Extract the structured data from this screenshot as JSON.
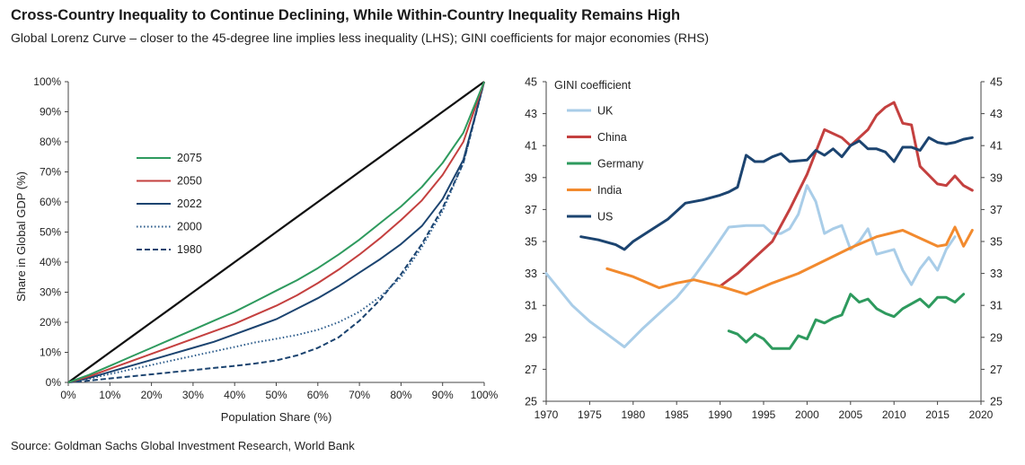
{
  "title": "Cross-Country Inequality to Continue Declining, While Within-Country Inequality Remains High",
  "subtitle": "Global Lorenz Curve – closer to the 45-degree line implies less inequality (LHS); GINI coefficients for major economies (RHS)",
  "source": "Source: Goldman Sachs Global Investment Research, World Bank",
  "chart_data": [
    {
      "type": "line",
      "xlabel": "Population Share (%)",
      "ylabel": "Share in Global GDP (%)",
      "xlim": [
        0,
        100
      ],
      "ylim": [
        0,
        100
      ],
      "xticks": [
        "0%",
        "10%",
        "20%",
        "30%",
        "40%",
        "50%",
        "60%",
        "70%",
        "80%",
        "90%",
        "100%"
      ],
      "yticks": [
        "0%",
        "10%",
        "20%",
        "30%",
        "40%",
        "50%",
        "60%",
        "70%",
        "80%",
        "90%",
        "100%"
      ],
      "grid": false,
      "legend_position": "left",
      "x": [
        0,
        5,
        10,
        15,
        20,
        25,
        30,
        35,
        40,
        45,
        50,
        55,
        60,
        65,
        70,
        75,
        80,
        85,
        90,
        95,
        100
      ],
      "series": [
        {
          "name": "2075",
          "color": "#2e9a5e",
          "style": "solid",
          "values": [
            0,
            2.5,
            5.5,
            8.5,
            11.5,
            14.5,
            17.5,
            20.5,
            23.5,
            27,
            30.5,
            34,
            38,
            42.5,
            47.5,
            53,
            58.5,
            65,
            73,
            83,
            100
          ]
        },
        {
          "name": "2050",
          "color": "#c4403f",
          "style": "solid",
          "values": [
            0,
            2,
            4.5,
            7,
            9.5,
            12,
            14.5,
            17,
            19.5,
            22.5,
            25.5,
            29,
            33,
            37.5,
            42.5,
            48,
            54,
            60.5,
            69,
            80,
            100
          ]
        },
        {
          "name": "2022",
          "color": "#1c4470",
          "style": "solid",
          "values": [
            0,
            1.5,
            3.5,
            5.5,
            7.5,
            9.5,
            11.5,
            13.5,
            16,
            18.5,
            21,
            24.5,
            28,
            32,
            36.5,
            41,
            46,
            52,
            61,
            74,
            100
          ]
        },
        {
          "name": "2000",
          "color": "#2a5a8a",
          "style": "dotted",
          "values": [
            0,
            1.2,
            2.8,
            4.3,
            5.8,
            7.3,
            8.8,
            10.3,
            11.8,
            13.3,
            14.5,
            15.8,
            17.5,
            20,
            23.5,
            28.5,
            35,
            45,
            57,
            73,
            100
          ]
        },
        {
          "name": "1980",
          "color": "#1c4470",
          "style": "dashed",
          "values": [
            0,
            0.6,
            1.3,
            2,
            2.7,
            3.4,
            4.1,
            4.8,
            5.5,
            6.3,
            7.3,
            9,
            11.5,
            15,
            20.5,
            27.5,
            36,
            46,
            58,
            73,
            100
          ]
        },
        {
          "name": "",
          "color": "#111111",
          "style": "solid",
          "values": [
            0,
            5,
            10,
            15,
            20,
            25,
            30,
            35,
            40,
            45,
            50,
            55,
            60,
            65,
            70,
            75,
            80,
            85,
            90,
            95,
            100
          ]
        }
      ]
    },
    {
      "type": "line",
      "title": "GINI coefficient",
      "xlabel": "",
      "ylabel": "",
      "xlim": [
        1970,
        2020
      ],
      "ylim": [
        25,
        45
      ],
      "xticks": [
        "1970",
        "1975",
        "1980",
        "1985",
        "1990",
        "1995",
        "2000",
        "2005",
        "2010",
        "2015",
        "2020"
      ],
      "yticks": [
        "25",
        "27",
        "29",
        "31",
        "33",
        "35",
        "37",
        "39",
        "41",
        "43",
        "45"
      ],
      "secondary_y_axis": true,
      "grid": false,
      "legend_position": "top-left",
      "series": [
        {
          "name": "UK",
          "color": "#a9cde8",
          "points": [
            [
              1970,
              33
            ],
            [
              1973,
              31
            ],
            [
              1975,
              30
            ],
            [
              1977,
              29.2
            ],
            [
              1979,
              28.4
            ],
            [
              1981,
              29.5
            ],
            [
              1983,
              30.5
            ],
            [
              1985,
              31.5
            ],
            [
              1987,
              32.8
            ],
            [
              1989,
              34.3
            ],
            [
              1991,
              35.9
            ],
            [
              1993,
              36
            ],
            [
              1995,
              36
            ],
            [
              1996,
              35.5
            ],
            [
              1997,
              35.5
            ],
            [
              1998,
              35.8
            ],
            [
              1999,
              36.7
            ],
            [
              2000,
              38.5
            ],
            [
              2001,
              37.5
            ],
            [
              2002,
              35.5
            ],
            [
              2003,
              35.8
            ],
            [
              2004,
              36
            ],
            [
              2005,
              34.5
            ],
            [
              2006,
              35
            ],
            [
              2007,
              35.8
            ],
            [
              2008,
              34.2
            ],
            [
              2010,
              34.5
            ],
            [
              2011,
              33.2
            ],
            [
              2012,
              32.3
            ],
            [
              2013,
              33.3
            ],
            [
              2014,
              34
            ],
            [
              2015,
              33.2
            ],
            [
              2016,
              34.5
            ],
            [
              2017,
              35.3
            ]
          ]
        },
        {
          "name": "China",
          "color": "#c4403f",
          "points": [
            [
              1990,
              32.2
            ],
            [
              1992,
              33
            ],
            [
              1994,
              34
            ],
            [
              1996,
              35
            ],
            [
              1998,
              37
            ],
            [
              2000,
              39.2
            ],
            [
              2002,
              42
            ],
            [
              2004,
              41.5
            ],
            [
              2005,
              41
            ],
            [
              2007,
              42
            ],
            [
              2008,
              42.9
            ],
            [
              2009,
              43.4
            ],
            [
              2010,
              43.7
            ],
            [
              2011,
              42.4
            ],
            [
              2012,
              42.3
            ],
            [
              2013,
              39.7
            ],
            [
              2015,
              38.6
            ],
            [
              2016,
              38.5
            ],
            [
              2017,
              39.1
            ],
            [
              2018,
              38.5
            ],
            [
              2019,
              38.2
            ]
          ]
        },
        {
          "name": "Germany",
          "color": "#2e9a5e",
          "points": [
            [
              1991,
              29.4
            ],
            [
              1992,
              29.2
            ],
            [
              1993,
              28.7
            ],
            [
              1994,
              29.2
            ],
            [
              1995,
              28.9
            ],
            [
              1996,
              28.3
            ],
            [
              1997,
              28.3
            ],
            [
              1998,
              28.3
            ],
            [
              1999,
              29.1
            ],
            [
              2000,
              28.9
            ],
            [
              2001,
              30.1
            ],
            [
              2002,
              29.9
            ],
            [
              2003,
              30.2
            ],
            [
              2004,
              30.4
            ],
            [
              2005,
              31.7
            ],
            [
              2006,
              31.2
            ],
            [
              2007,
              31.4
            ],
            [
              2008,
              30.8
            ],
            [
              2009,
              30.5
            ],
            [
              2010,
              30.3
            ],
            [
              2011,
              30.8
            ],
            [
              2012,
              31.1
            ],
            [
              2013,
              31.4
            ],
            [
              2014,
              30.9
            ],
            [
              2015,
              31.5
            ],
            [
              2016,
              31.5
            ],
            [
              2017,
              31.2
            ],
            [
              2018,
              31.7
            ]
          ]
        },
        {
          "name": "India",
          "color": "#f28a2e",
          "points": [
            [
              1977,
              33.3
            ],
            [
              1980,
              32.8
            ],
            [
              1983,
              32.1
            ],
            [
              1985,
              32.4
            ],
            [
              1987,
              32.6
            ],
            [
              1990,
              32.2
            ],
            [
              1993,
              31.7
            ],
            [
              1996,
              32.4
            ],
            [
              1999,
              33
            ],
            [
              2002,
              33.8
            ],
            [
              2005,
              34.6
            ],
            [
              2008,
              35.3
            ],
            [
              2011,
              35.7
            ],
            [
              2013,
              35.2
            ],
            [
              2015,
              34.7
            ],
            [
              2016,
              34.8
            ],
            [
              2017,
              35.9
            ],
            [
              2018,
              34.7
            ],
            [
              2019,
              35.7
            ]
          ]
        },
        {
          "name": "US",
          "color": "#1c4470",
          "points": [
            [
              1974,
              35.3
            ],
            [
              1976,
              35.1
            ],
            [
              1978,
              34.8
            ],
            [
              1979,
              34.5
            ],
            [
              1980,
              35
            ],
            [
              1982,
              35.7
            ],
            [
              1984,
              36.4
            ],
            [
              1986,
              37.4
            ],
            [
              1988,
              37.6
            ],
            [
              1990,
              37.9
            ],
            [
              1991,
              38.1
            ],
            [
              1992,
              38.4
            ],
            [
              1993,
              40.4
            ],
            [
              1994,
              40
            ],
            [
              1995,
              40
            ],
            [
              1996,
              40.3
            ],
            [
              1997,
              40.5
            ],
            [
              1998,
              40
            ],
            [
              2000,
              40.1
            ],
            [
              2001,
              40.7
            ],
            [
              2002,
              40.4
            ],
            [
              2003,
              40.8
            ],
            [
              2004,
              40.3
            ],
            [
              2005,
              41
            ],
            [
              2006,
              41.3
            ],
            [
              2007,
              40.8
            ],
            [
              2008,
              40.8
            ],
            [
              2009,
              40.6
            ],
            [
              2010,
              40
            ],
            [
              2011,
              40.9
            ],
            [
              2012,
              40.9
            ],
            [
              2013,
              40.7
            ],
            [
              2014,
              41.5
            ],
            [
              2015,
              41.2
            ],
            [
              2016,
              41.1
            ],
            [
              2017,
              41.2
            ],
            [
              2018,
              41.4
            ],
            [
              2019,
              41.5
            ]
          ]
        }
      ]
    }
  ]
}
